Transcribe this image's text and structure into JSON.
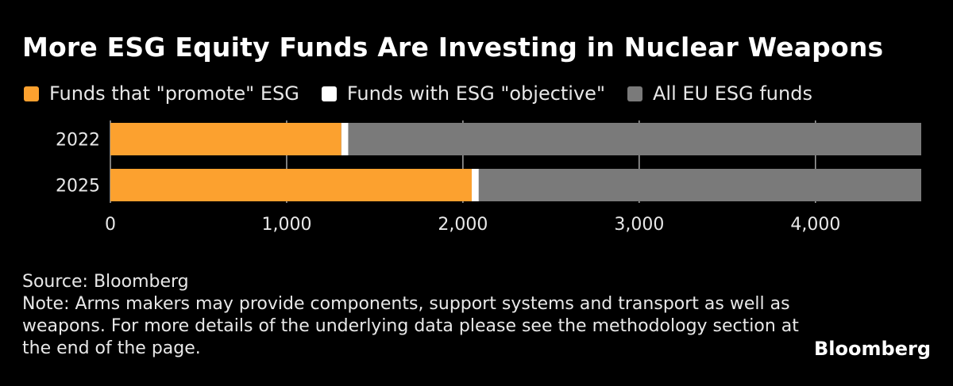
{
  "title": "More ESG Equity Funds Are Investing in Nuclear Weapons",
  "colors": {
    "promote": "#fca12f",
    "objective": "#ffffff",
    "all": "#7a7a7a",
    "background": "#000000"
  },
  "chart_data": {
    "type": "bar",
    "orientation": "horizontal",
    "stacked": true,
    "categories": [
      "2022",
      "2025"
    ],
    "series": [
      {
        "name": "Funds that \"promote\" ESG",
        "values": [
          1310,
          2050
        ]
      },
      {
        "name": "Funds with ESG \"objective\"",
        "values": [
          40,
          40
        ]
      },
      {
        "name": "All EU ESG funds",
        "values": [
          3250,
          2510
        ]
      }
    ],
    "xlim": [
      0,
      4600
    ],
    "xticks": [
      0,
      1000,
      2000,
      3000,
      4000
    ],
    "xtick_labels": [
      "0",
      "1,000",
      "2,000",
      "3,000",
      "4,000"
    ],
    "grid": true,
    "legend_position": "top-left"
  },
  "footer": {
    "source": "Source: Bloomberg",
    "note": "Note: Arms makers may provide components, support systems and transport as well as weapons. For more details of the underlying data please see the methodology section at the end of the page."
  },
  "brand": "Bloomberg"
}
